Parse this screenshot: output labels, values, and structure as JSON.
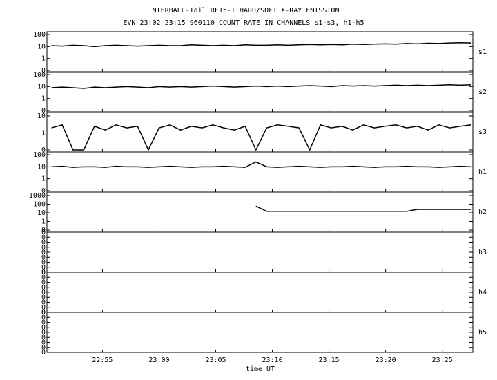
{
  "title": "INTERBALL-Tail RF15-I HARD/SOFT X-RAY EMISSION",
  "subtitle": "EVN 23:02 23:15 960110  COUNT RATE IN CHANNELS s1-s3, h1-h5",
  "x_label": "time UT",
  "xlim": [
    1370.1,
    1407.7
  ],
  "xticks": [
    {
      "value": 1375,
      "label": "22:55"
    },
    {
      "value": 1380,
      "label": "23:00"
    },
    {
      "value": 1385,
      "label": "23:05"
    },
    {
      "value": 1390,
      "label": "23:10"
    },
    {
      "value": 1395,
      "label": "23:15"
    },
    {
      "value": 1400,
      "label": "23:20"
    },
    {
      "value": 1405,
      "label": "23:25"
    }
  ],
  "x": [
    1370.5,
    1371.45,
    1372.4,
    1373.35,
    1374.3,
    1375.25,
    1376.2,
    1377.15,
    1378.1,
    1379.05,
    1380.0,
    1380.95,
    1381.9,
    1382.85,
    1383.8,
    1384.75,
    1385.7,
    1386.65,
    1387.6,
    1388.55,
    1389.5,
    1390.45,
    1391.4,
    1392.35,
    1393.3,
    1394.25,
    1395.2,
    1396.15,
    1397.1,
    1398.05,
    1399.0,
    1399.95,
    1400.9,
    1401.85,
    1402.8,
    1403.75,
    1404.7,
    1405.65,
    1406.6,
    1407.55
  ],
  "chart_data": [
    {
      "type": "line",
      "name": "s1",
      "yscale": "log",
      "color": "#000000",
      "ylim": [
        0.077,
        170
      ],
      "yticks": [
        100,
        10,
        1,
        {
          "value": 0.1,
          "label": "0"
        }
      ],
      "values": [
        12,
        11,
        13,
        12,
        10,
        12,
        13,
        12,
        11,
        12,
        13,
        12,
        12,
        14,
        13,
        12,
        13,
        12,
        14,
        13,
        13,
        14,
        13,
        14,
        15,
        14,
        15,
        14,
        16,
        15,
        16,
        17,
        16,
        18,
        17,
        19,
        18,
        20,
        21,
        20
      ]
    },
    {
      "type": "line",
      "name": "s2",
      "yscale": "log",
      "color": "#000000",
      "ylim": [
        0.077,
        170
      ],
      "yticks": [
        100,
        10,
        1,
        {
          "value": 0.1,
          "label": "0"
        }
      ],
      "values": [
        8,
        9,
        8,
        7,
        9,
        8,
        9,
        10,
        9,
        8,
        10,
        9,
        10,
        9,
        10,
        11,
        10,
        9,
        10,
        11,
        10,
        11,
        10,
        11,
        12,
        11,
        10,
        12,
        11,
        12,
        11,
        12,
        13,
        12,
        13,
        12,
        13,
        14,
        13,
        14
      ]
    },
    {
      "type": "line",
      "name": "s3",
      "yscale": "log",
      "color": "#000000",
      "ylim": [
        0.075,
        17.6
      ],
      "yticks": [
        10,
        1,
        {
          "value": 0.1,
          "label": "0"
        }
      ],
      "values": [
        2,
        3,
        0.1,
        0.1,
        2.5,
        1.5,
        3,
        2,
        2.5,
        0.1,
        2,
        3,
        1.5,
        2.5,
        2,
        3,
        2,
        1.5,
        2.5,
        0.1,
        2,
        3,
        2.5,
        2,
        0.1,
        3,
        2,
        2.5,
        1.5,
        3,
        2,
        2.5,
        3,
        2,
        2.5,
        1.5,
        3,
        2,
        2.5,
        3
      ]
    },
    {
      "type": "line",
      "name": "h1",
      "yscale": "log",
      "color": "#000000",
      "ylim": [
        0.077,
        170
      ],
      "yticks": [
        100,
        10,
        1,
        {
          "value": 0.1,
          "label": "0"
        }
      ],
      "values": [
        10,
        11,
        9,
        10,
        10,
        9,
        11,
        10,
        10,
        9,
        10,
        11,
        10,
        9,
        10,
        10,
        11,
        10,
        9,
        25,
        10,
        9,
        10,
        11,
        10,
        9,
        10,
        10,
        11,
        10,
        9,
        10,
        10,
        11,
        10,
        10,
        9,
        10,
        11,
        10
      ]
    },
    {
      "type": "line",
      "name": "h2",
      "yscale": "log",
      "color": "#000000",
      "ylim": [
        0.058,
        2500
      ],
      "yticks": [
        1000,
        100,
        10,
        1,
        {
          "value": 0.1,
          "label": "0"
        }
      ],
      "values": [
        null,
        null,
        null,
        null,
        null,
        null,
        null,
        null,
        null,
        null,
        null,
        null,
        null,
        null,
        null,
        null,
        null,
        null,
        null,
        60,
        15,
        15,
        15,
        15,
        15,
        15,
        15,
        15,
        15,
        15,
        15,
        15,
        15,
        15,
        25,
        25,
        25,
        25,
        25,
        25
      ]
    },
    {
      "type": "line",
      "name": "h3",
      "yscale": "linear",
      "ylim": [
        0,
        0.4
      ],
      "yticks": [
        {
          "value": 0,
          "label": "0"
        },
        {
          "value": 0.05,
          "label": "0"
        },
        {
          "value": 0.1,
          "label": "0"
        },
        {
          "value": 0.15,
          "label": "0"
        },
        {
          "value": 0.2,
          "label": "0"
        },
        {
          "value": 0.25,
          "label": "0"
        },
        {
          "value": 0.3,
          "label": "0"
        },
        {
          "value": 0.35,
          "label": "0"
        },
        {
          "value": 0.4,
          "label": "0"
        }
      ]
    },
    {
      "type": "line",
      "name": "h4",
      "yscale": "linear",
      "ylim": [
        0,
        0.4
      ],
      "yticks": [
        {
          "value": 0,
          "label": "0"
        },
        {
          "value": 0.05,
          "label": "0"
        },
        {
          "value": 0.1,
          "label": "0"
        },
        {
          "value": 0.15,
          "label": "0"
        },
        {
          "value": 0.2,
          "label": "0"
        },
        {
          "value": 0.25,
          "label": "0"
        },
        {
          "value": 0.3,
          "label": "0"
        },
        {
          "value": 0.35,
          "label": "0"
        },
        {
          "value": 0.4,
          "label": "0"
        }
      ]
    },
    {
      "type": "line",
      "name": "h5",
      "yscale": "linear",
      "ylim": [
        0,
        0.4
      ],
      "yticks": [
        {
          "value": 0,
          "label": "0"
        },
        {
          "value": 0.05,
          "label": "0"
        },
        {
          "value": 0.1,
          "label": "0"
        },
        {
          "value": 0.15,
          "label": "0"
        },
        {
          "value": 0.2,
          "label": "0"
        },
        {
          "value": 0.25,
          "label": "0"
        },
        {
          "value": 0.3,
          "label": "0"
        },
        {
          "value": 0.35,
          "label": "0"
        },
        {
          "value": 0.4,
          "label": "0"
        }
      ]
    }
  ]
}
